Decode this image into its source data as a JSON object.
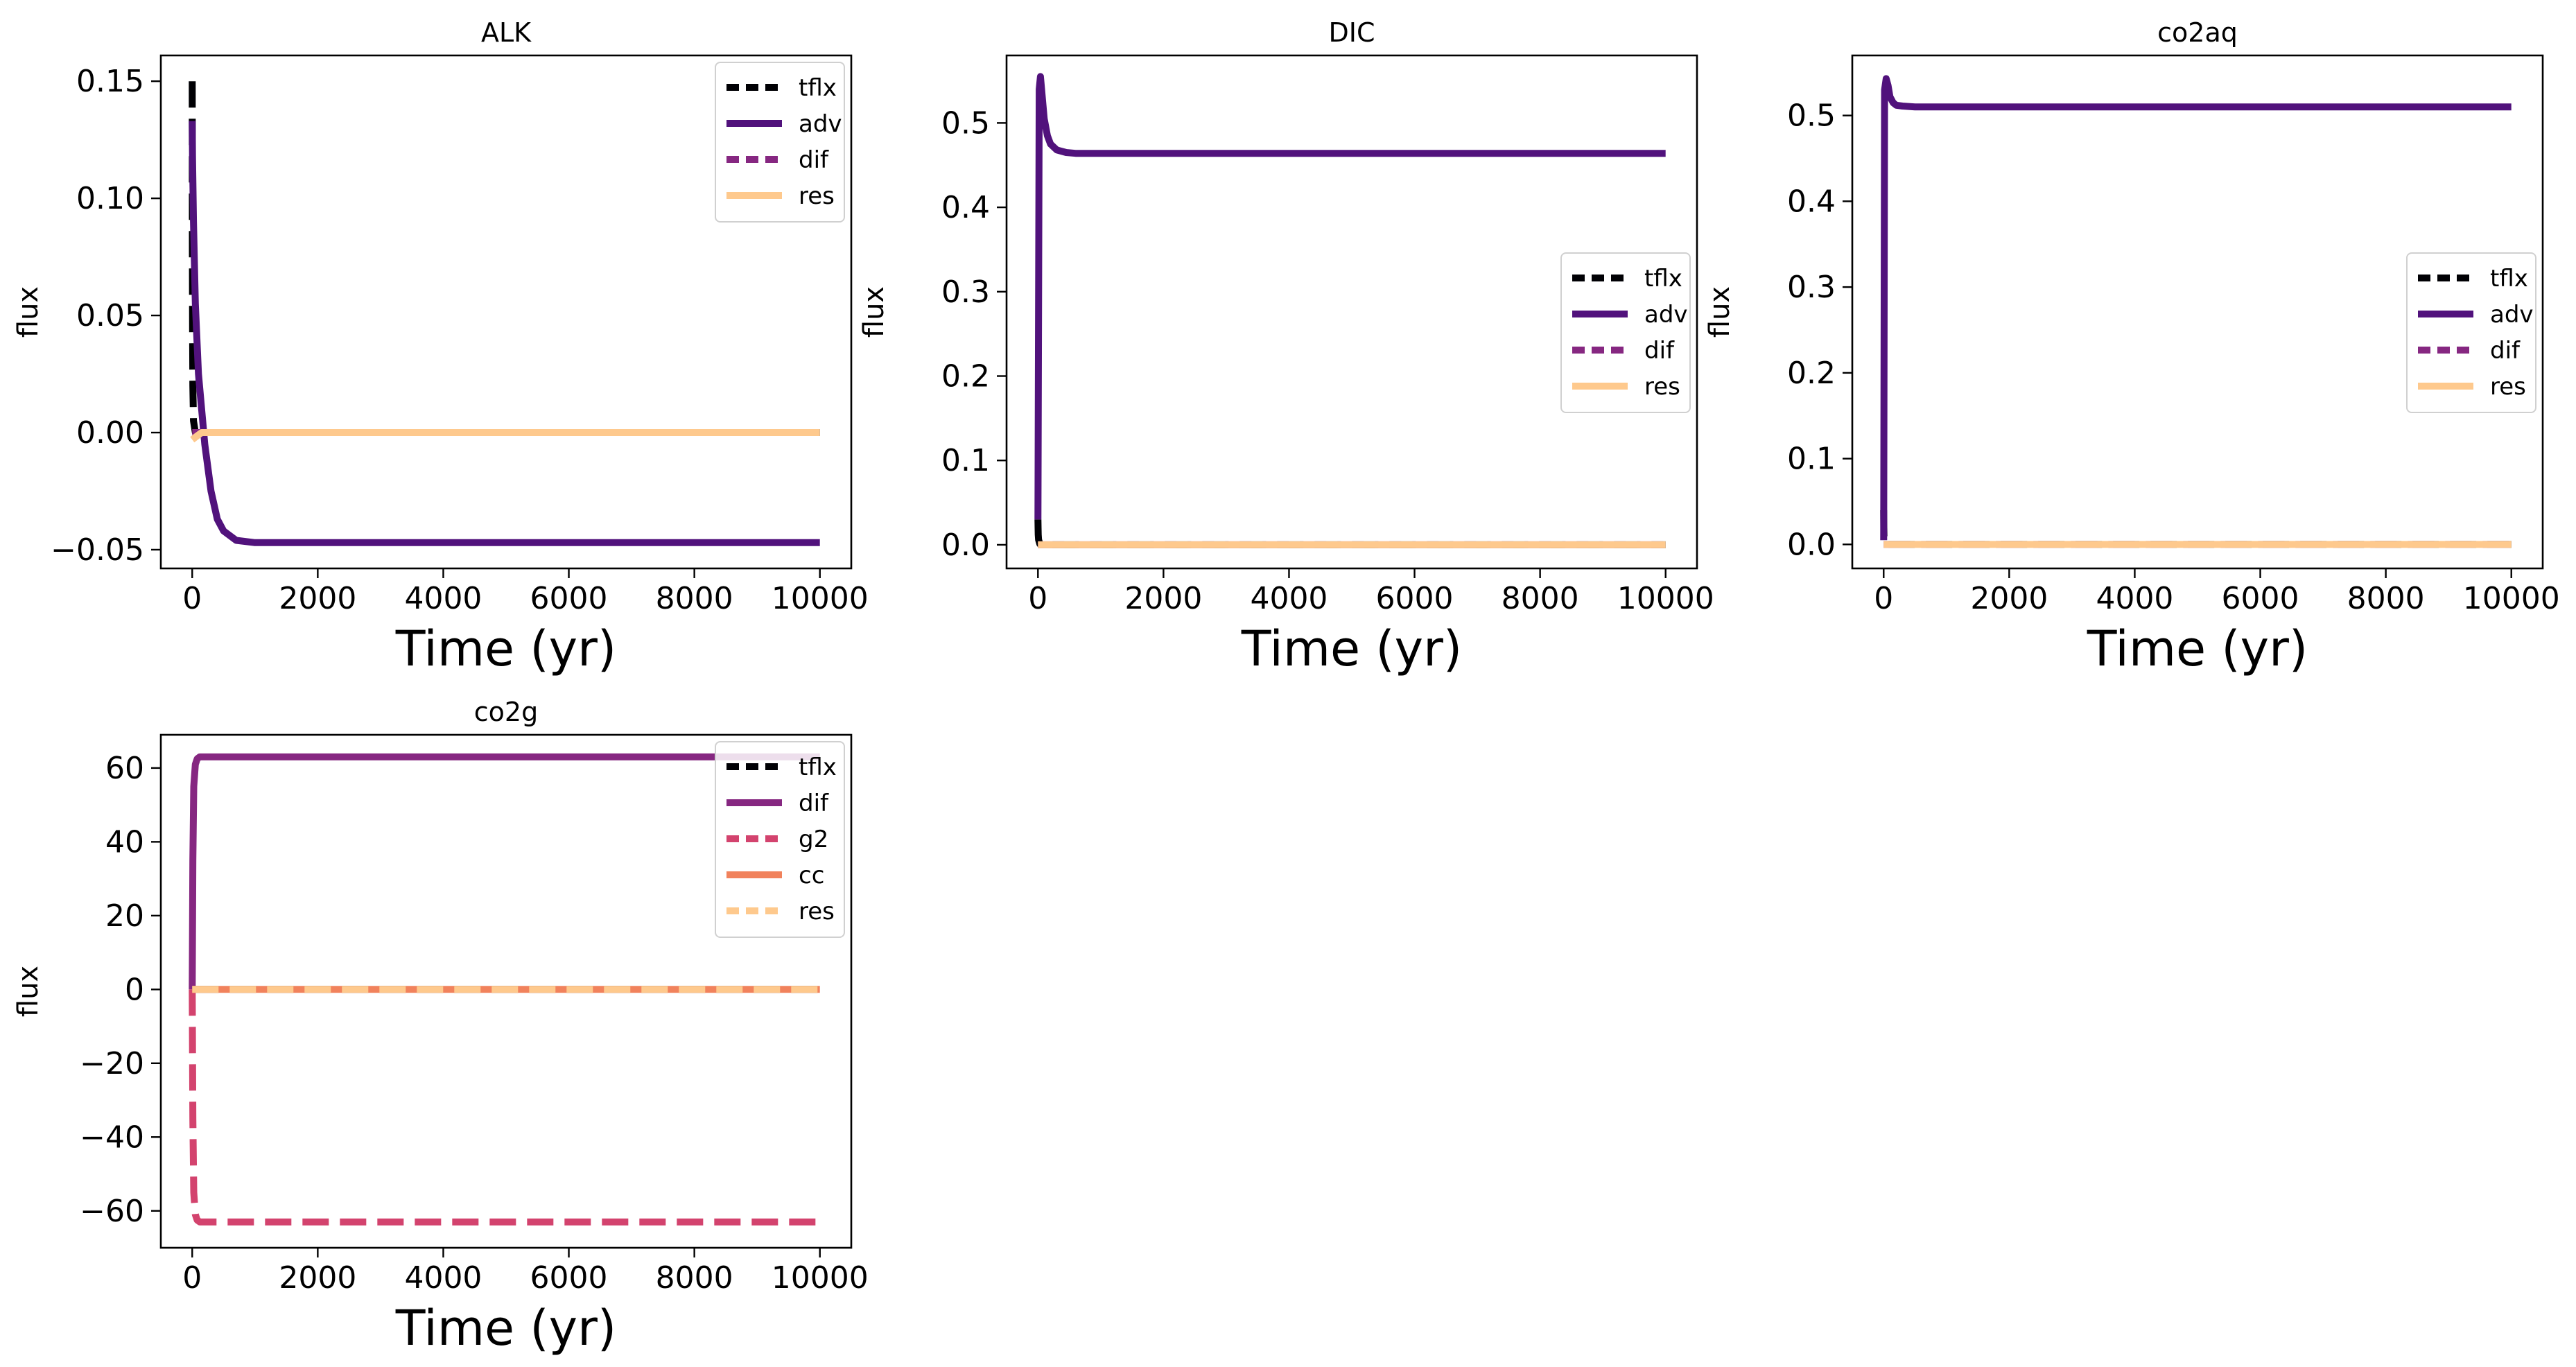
{
  "colors": {
    "tflx": "#000004",
    "adv": "#51127c",
    "dif": "#862781",
    "g2": "#d3436e",
    "cc": "#f1825c",
    "res": "#fec98d"
  },
  "chart_data": [
    {
      "type": "line",
      "title": "ALK",
      "xlabel": "Time (yr)",
      "ylabel": "flux",
      "xlim": [
        -500,
        10500
      ],
      "ylim": [
        -0.058,
        0.161
      ],
      "xticks": [
        0,
        2000,
        4000,
        6000,
        8000,
        10000
      ],
      "xtick_labels": [
        "0",
        "2000",
        "4000",
        "6000",
        "8000",
        "10000"
      ],
      "yticks": [
        -0.05,
        0,
        0.05,
        0.1,
        0.15
      ],
      "ytick_labels": [
        "−0.05",
        "0.00",
        "0.05",
        "0.10",
        "0.15"
      ],
      "legend_position": "top-right",
      "grid": false,
      "series": [
        {
          "name": "tflx",
          "style": "dashed",
          "color_key": "tflx",
          "x": [
            0,
            1,
            3,
            6,
            10,
            20,
            50,
            100,
            10000
          ],
          "y": [
            0.15,
            0.12,
            0.08,
            0.045,
            0.02,
            0.005,
            0.0,
            0.0,
            0.0
          ]
        },
        {
          "name": "adv",
          "style": "solid",
          "color_key": "adv",
          "x": [
            0,
            5,
            20,
            50,
            100,
            200,
            300,
            400,
            500,
            700,
            1000,
            10000
          ],
          "y": [
            0.133,
            0.118,
            0.09,
            0.055,
            0.025,
            -0.005,
            -0.025,
            -0.037,
            -0.042,
            -0.046,
            -0.047,
            -0.047
          ]
        },
        {
          "name": "dif",
          "style": "dashed",
          "color_key": "dif",
          "x": [
            0,
            10000
          ],
          "y": [
            0.0,
            0.0
          ]
        },
        {
          "name": "res",
          "style": "solid",
          "color_key": "res",
          "x": [
            0,
            50,
            150,
            300,
            10000
          ],
          "y": [
            -0.003,
            -0.002,
            0.0,
            0.0,
            0.0
          ]
        }
      ]
    },
    {
      "type": "line",
      "title": "DIC",
      "xlabel": "Time (yr)",
      "ylabel": "flux",
      "xlim": [
        -500,
        10500
      ],
      "ylim": [
        -0.028,
        0.58
      ],
      "xticks": [
        0,
        2000,
        4000,
        6000,
        8000,
        10000
      ],
      "xtick_labels": [
        "0",
        "2000",
        "4000",
        "6000",
        "8000",
        "10000"
      ],
      "yticks": [
        0,
        0.1,
        0.2,
        0.3,
        0.4,
        0.5
      ],
      "ytick_labels": [
        "0.0",
        "0.1",
        "0.2",
        "0.3",
        "0.4",
        "0.5"
      ],
      "legend_position": "center-right",
      "grid": false,
      "series": [
        {
          "name": "tflx",
          "style": "dashed",
          "color_key": "tflx",
          "x": [
            0,
            2,
            5,
            10,
            30,
            100,
            10000
          ],
          "y": [
            0.03,
            0.02,
            0.012,
            0.006,
            0.001,
            0.0,
            0.0
          ]
        },
        {
          "name": "adv",
          "style": "solid",
          "color_key": "adv",
          "x": [
            0,
            20,
            40,
            70,
            100,
            150,
            200,
            300,
            450,
            600,
            10000
          ],
          "y": [
            0.03,
            0.54,
            0.555,
            0.53,
            0.505,
            0.485,
            0.475,
            0.468,
            0.465,
            0.464,
            0.464
          ]
        },
        {
          "name": "dif",
          "style": "dashed",
          "color_key": "dif",
          "x": [
            0,
            10000
          ],
          "y": [
            0.0,
            0.0
          ]
        },
        {
          "name": "res",
          "style": "solid",
          "color_key": "res",
          "x": [
            0,
            10000
          ],
          "y": [
            0.0,
            0.0
          ]
        }
      ]
    },
    {
      "type": "line",
      "title": "co2aq",
      "xlabel": "Time (yr)",
      "ylabel": "flux",
      "xlim": [
        -500,
        10500
      ],
      "ylim": [
        -0.028,
        0.57
      ],
      "xticks": [
        0,
        2000,
        4000,
        6000,
        8000,
        10000
      ],
      "xtick_labels": [
        "0",
        "2000",
        "4000",
        "6000",
        "8000",
        "10000"
      ],
      "yticks": [
        0,
        0.1,
        0.2,
        0.3,
        0.4,
        0.5
      ],
      "ytick_labels": [
        "0.0",
        "0.1",
        "0.2",
        "0.3",
        "0.4",
        "0.5"
      ],
      "legend_position": "center-right",
      "grid": false,
      "series": [
        {
          "name": "tflx",
          "style": "dashed",
          "color_key": "tflx",
          "x": [
            0,
            2,
            5,
            10,
            30,
            10000
          ],
          "y": [
            0.04,
            0.02,
            0.01,
            0.004,
            0.0,
            0.0
          ]
        },
        {
          "name": "adv",
          "style": "solid",
          "color_key": "adv",
          "x": [
            0,
            15,
            40,
            70,
            100,
            150,
            200,
            300,
            500,
            10000
          ],
          "y": [
            0.005,
            0.53,
            0.543,
            0.535,
            0.522,
            0.515,
            0.512,
            0.511,
            0.51,
            0.51
          ]
        },
        {
          "name": "dif",
          "style": "dashed",
          "color_key": "dif",
          "x": [
            0,
            10000
          ],
          "y": [
            0.0,
            0.0
          ]
        },
        {
          "name": "res",
          "style": "solid",
          "color_key": "res",
          "x": [
            0,
            10000
          ],
          "y": [
            0.0,
            0.0
          ]
        }
      ]
    },
    {
      "type": "line",
      "title": "co2g",
      "xlabel": "Time (yr)",
      "ylabel": "flux",
      "xlim": [
        -500,
        10500
      ],
      "ylim": [
        -70,
        69
      ],
      "xticks": [
        0,
        2000,
        4000,
        6000,
        8000,
        10000
      ],
      "xtick_labels": [
        "0",
        "2000",
        "4000",
        "6000",
        "8000",
        "10000"
      ],
      "yticks": [
        -60,
        -40,
        -20,
        0,
        20,
        40,
        60
      ],
      "ytick_labels": [
        "−60",
        "−40",
        "−20",
        "0",
        "20",
        "40",
        "60"
      ],
      "legend_position": "top-right",
      "grid": false,
      "series": [
        {
          "name": "tflx",
          "style": "dashed",
          "color_key": "tflx",
          "x": [
            0,
            10000
          ],
          "y": [
            0,
            0
          ]
        },
        {
          "name": "dif",
          "style": "solid",
          "color_key": "dif",
          "x": [
            0,
            10,
            25,
            50,
            80,
            120,
            200,
            10000
          ],
          "y": [
            0,
            35,
            55,
            61,
            62.5,
            63,
            63,
            63
          ]
        },
        {
          "name": "g2",
          "style": "dashed",
          "color_key": "g2",
          "x": [
            0,
            10,
            25,
            50,
            80,
            120,
            200,
            10000
          ],
          "y": [
            0,
            -35,
            -55,
            -61,
            -62.5,
            -63,
            -63,
            -63
          ]
        },
        {
          "name": "cc",
          "style": "solid",
          "color_key": "cc",
          "x": [
            0,
            10000
          ],
          "y": [
            0,
            0
          ]
        },
        {
          "name": "res",
          "style": "dashed",
          "color_key": "res",
          "x": [
            0,
            10000
          ],
          "y": [
            0,
            0
          ]
        }
      ]
    }
  ]
}
